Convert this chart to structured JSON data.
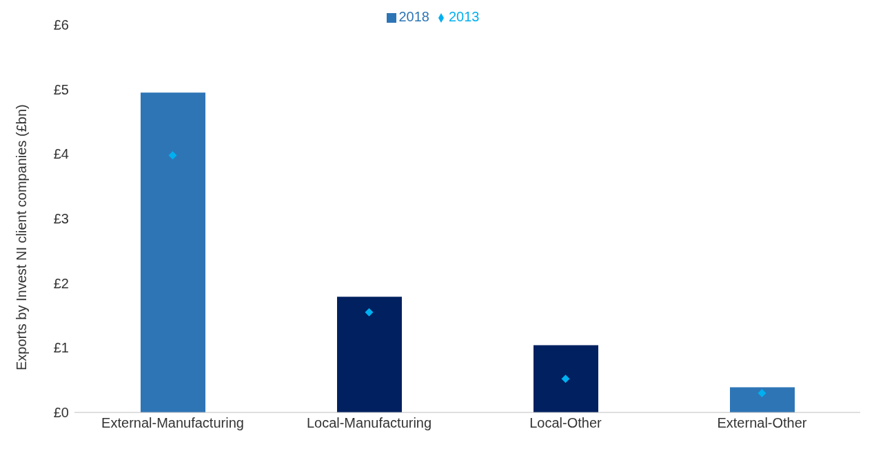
{
  "chart_data": {
    "type": "bar",
    "ylabel": "Exports by Invest NI client companies (£bn)",
    "categories": [
      "External-Manufacturing",
      "Local-Manufacturing",
      "Local-Other",
      "External-Other"
    ],
    "series": [
      {
        "name": "2018",
        "color": "#2e75b6",
        "colors": [
          "#2e75b6",
          "#002060",
          "#002060",
          "#2e75b6"
        ],
        "values": [
          4.95,
          1.79,
          1.04,
          0.39
        ]
      },
      {
        "name": "2013",
        "type": "scatter",
        "color": "#00b0f0",
        "marker": "diamond",
        "values": [
          3.98,
          1.55,
          0.52,
          0.3
        ]
      }
    ],
    "ylim": [
      0,
      6
    ],
    "yticks": [
      {
        "value": 0,
        "label": "£0"
      },
      {
        "value": 1,
        "label": "£1"
      },
      {
        "value": 2,
        "label": "£2"
      },
      {
        "value": 3,
        "label": "£3"
      },
      {
        "value": 4,
        "label": "£4"
      },
      {
        "value": 5,
        "label": "£5"
      },
      {
        "value": 6,
        "label": "£6"
      }
    ],
    "grid": false,
    "legend": "top"
  }
}
